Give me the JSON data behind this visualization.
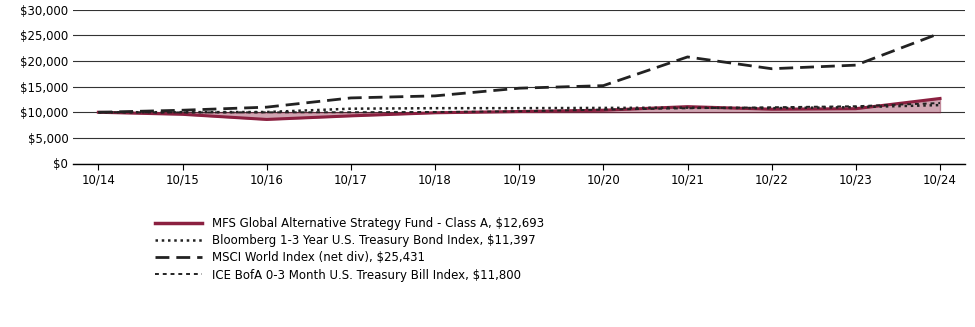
{
  "x_labels": [
    "10/14",
    "10/15",
    "10/16",
    "10/17",
    "10/18",
    "10/19",
    "10/20",
    "10/21",
    "10/22",
    "10/23",
    "10/24"
  ],
  "x_positions": [
    0,
    1,
    2,
    3,
    4,
    5,
    6,
    7,
    8,
    9,
    10
  ],
  "ylim": [
    0,
    30000
  ],
  "yticks": [
    0,
    5000,
    10000,
    15000,
    20000,
    25000,
    30000
  ],
  "series": {
    "mfs": {
      "label": "MFS Global Alternative Strategy Fund - Class A, $12,693",
      "color": "#8B2040",
      "fill_color": "#8B2040",
      "fill_alpha": 0.4,
      "linewidth": 2.2,
      "values": [
        10000,
        9600,
        8600,
        9300,
        9900,
        10150,
        10400,
        11100,
        10600,
        10700,
        12693
      ]
    },
    "bloomberg": {
      "label": "Bloomberg 1-3 Year U.S. Treasury Bond Index, $11,397",
      "color": "#222222",
      "linewidth": 1.8,
      "values": [
        10000,
        10020,
        10050,
        10700,
        10800,
        10800,
        10850,
        10900,
        10800,
        11000,
        11397
      ]
    },
    "msci": {
      "label": "MSCI World Index (net div), $25,431",
      "color": "#222222",
      "linewidth": 2.0,
      "values": [
        10000,
        10400,
        11000,
        12800,
        13200,
        14700,
        15200,
        20800,
        18500,
        19200,
        25431
      ]
    },
    "ice": {
      "label": "ICE BofA 0-3 Month U.S. Treasury Bill Index, $11,800",
      "color": "#222222",
      "linewidth": 1.4,
      "values": [
        10000,
        9970,
        9990,
        10010,
        10060,
        10180,
        10520,
        10780,
        10980,
        11180,
        11800
      ]
    }
  },
  "fill_baseline": 10000,
  "background_color": "#ffffff",
  "grid_color": "#333333",
  "legend_fontsize": 8.5,
  "tick_fontsize": 8.5
}
